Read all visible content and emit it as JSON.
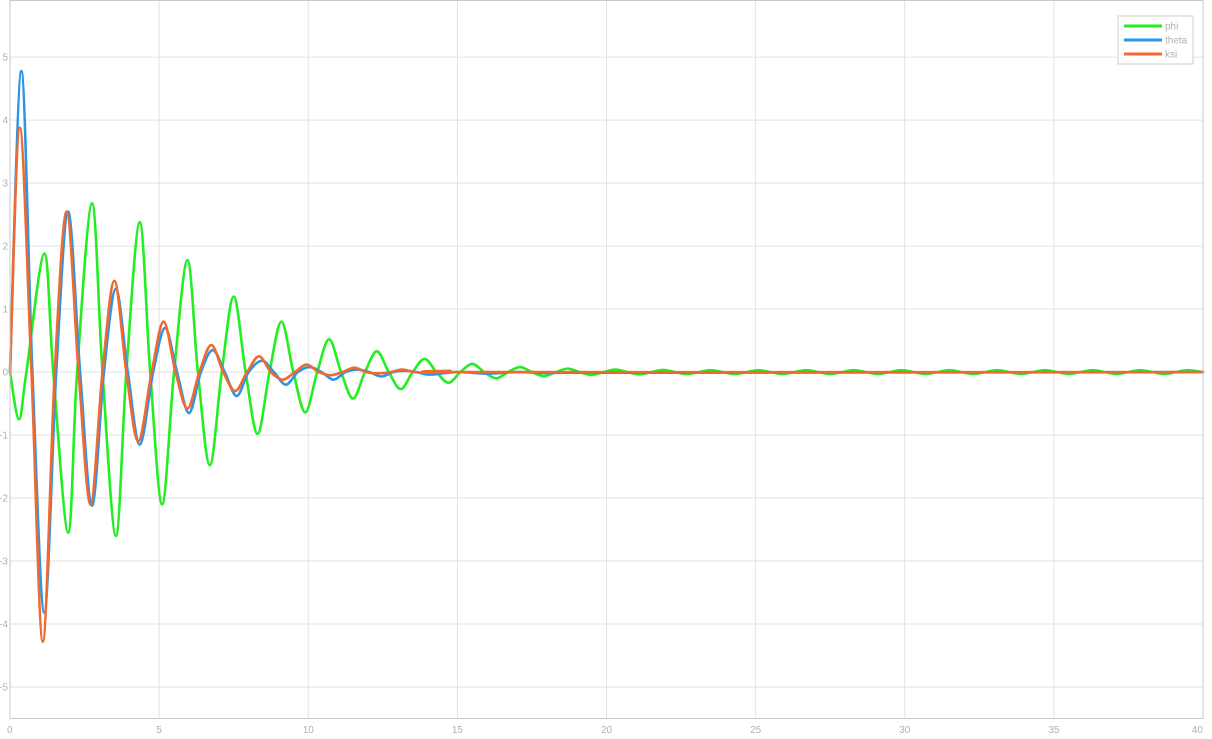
{
  "chart_data": {
    "type": "line",
    "title": "",
    "xlabel": "",
    "ylabel": "",
    "xlim": [
      0,
      40
    ],
    "ylim": [
      -5.5,
      5.9
    ],
    "grid": true,
    "legend_position": "top-right",
    "x_ticks": [
      0,
      5,
      10,
      15,
      20,
      25,
      30,
      35,
      40
    ],
    "x_tick_labels": [
      "0",
      "5",
      "10",
      "15",
      "20",
      "25",
      "30",
      "35",
      "40"
    ],
    "y_ticks": [
      -5,
      -4,
      -3,
      -2,
      -1,
      0,
      1,
      2,
      3,
      4,
      5
    ],
    "y_tick_labels": [
      "-5",
      "-4",
      "-3",
      "-2",
      "-1",
      "0",
      "1",
      "2",
      "3",
      "4",
      "5"
    ],
    "series": [
      {
        "name": "phi",
        "color": "#22ee22",
        "points": [
          [
            0,
            0
          ],
          [
            0.3,
            -0.75
          ],
          [
            0.55,
            0
          ],
          [
            1.15,
            1.88
          ],
          [
            1.45,
            0
          ],
          [
            1.95,
            -2.55
          ],
          [
            2.25,
            0
          ],
          [
            2.75,
            2.68
          ],
          [
            3.1,
            0
          ],
          [
            3.55,
            -2.6
          ],
          [
            3.9,
            0
          ],
          [
            4.35,
            2.38
          ],
          [
            4.7,
            0
          ],
          [
            5.1,
            -2.1
          ],
          [
            5.5,
            0
          ],
          [
            5.95,
            1.78
          ],
          [
            6.3,
            0
          ],
          [
            6.7,
            -1.48
          ],
          [
            7.1,
            0
          ],
          [
            7.5,
            1.2
          ],
          [
            7.9,
            0
          ],
          [
            8.3,
            -0.98
          ],
          [
            8.7,
            0
          ],
          [
            9.1,
            0.8
          ],
          [
            9.5,
            0
          ],
          [
            9.9,
            -0.64
          ],
          [
            10.3,
            0
          ],
          [
            10.7,
            0.52
          ],
          [
            11.1,
            0
          ],
          [
            11.5,
            -0.42
          ],
          [
            11.9,
            0
          ],
          [
            12.3,
            0.33
          ],
          [
            12.7,
            0
          ],
          [
            13.1,
            -0.27
          ],
          [
            13.5,
            0
          ],
          [
            13.9,
            0.21
          ],
          [
            14.3,
            0
          ],
          [
            14.7,
            -0.17
          ],
          [
            15.1,
            0
          ],
          [
            15.5,
            0.13
          ],
          [
            15.9,
            0
          ],
          [
            16.3,
            -0.1
          ],
          [
            16.7,
            0
          ],
          [
            17.1,
            0.08
          ],
          [
            17.5,
            0
          ],
          [
            17.9,
            -0.065
          ],
          [
            18.3,
            0
          ],
          [
            18.7,
            0.055
          ],
          [
            19.1,
            0
          ],
          [
            19.5,
            -0.045
          ],
          [
            19.9,
            0
          ],
          [
            20.3,
            0.04
          ],
          [
            20.7,
            0
          ],
          [
            21.1,
            -0.035
          ],
          [
            21.5,
            0
          ],
          [
            21.9,
            0.035
          ],
          [
            22.3,
            0
          ],
          [
            22.7,
            -0.03
          ],
          [
            23.1,
            0
          ],
          [
            23.5,
            0.03
          ],
          [
            23.9,
            0
          ],
          [
            24.3,
            -0.03
          ],
          [
            24.7,
            0
          ],
          [
            25.1,
            0.03
          ],
          [
            25.5,
            0
          ],
          [
            25.9,
            -0.03
          ],
          [
            26.3,
            0
          ],
          [
            26.7,
            0.03
          ],
          [
            27.1,
            0
          ],
          [
            27.5,
            -0.03
          ],
          [
            27.9,
            0
          ],
          [
            28.3,
            0.03
          ],
          [
            28.7,
            0
          ],
          [
            29.1,
            -0.03
          ],
          [
            29.5,
            0
          ],
          [
            29.9,
            0.03
          ],
          [
            30.3,
            0
          ],
          [
            30.7,
            -0.03
          ],
          [
            31.1,
            0
          ],
          [
            31.5,
            0.03
          ],
          [
            31.9,
            0
          ],
          [
            32.3,
            -0.03
          ],
          [
            32.7,
            0
          ],
          [
            33.1,
            0.03
          ],
          [
            33.5,
            0
          ],
          [
            33.9,
            -0.03
          ],
          [
            34.3,
            0
          ],
          [
            34.7,
            0.03
          ],
          [
            35.1,
            0
          ],
          [
            35.5,
            -0.03
          ],
          [
            35.9,
            0
          ],
          [
            36.3,
            0.03
          ],
          [
            36.7,
            0
          ],
          [
            37.1,
            -0.03
          ],
          [
            37.5,
            0
          ],
          [
            37.9,
            0.03
          ],
          [
            38.3,
            0
          ],
          [
            38.7,
            -0.03
          ],
          [
            39.1,
            0
          ],
          [
            39.5,
            0.03
          ],
          [
            40,
            0
          ]
        ]
      },
      {
        "name": "theta",
        "color": "#2b95e8",
        "points": [
          [
            0,
            0
          ],
          [
            0.38,
            4.78
          ],
          [
            0.75,
            0
          ],
          [
            1.15,
            -3.82
          ],
          [
            1.55,
            0
          ],
          [
            1.95,
            2.55
          ],
          [
            2.35,
            0
          ],
          [
            2.75,
            -2.12
          ],
          [
            3.15,
            0
          ],
          [
            3.55,
            1.32
          ],
          [
            3.95,
            0
          ],
          [
            4.35,
            -1.15
          ],
          [
            4.8,
            0
          ],
          [
            5.2,
            0.7
          ],
          [
            5.6,
            0
          ],
          [
            6.0,
            -0.65
          ],
          [
            6.4,
            0
          ],
          [
            6.8,
            0.35
          ],
          [
            7.2,
            0
          ],
          [
            7.6,
            -0.38
          ],
          [
            8.0,
            0
          ],
          [
            8.45,
            0.18
          ],
          [
            8.85,
            0
          ],
          [
            9.25,
            -0.2
          ],
          [
            9.65,
            0
          ],
          [
            10.05,
            0.08
          ],
          [
            10.45,
            0
          ],
          [
            10.85,
            -0.12
          ],
          [
            11.25,
            0
          ],
          [
            11.65,
            0.04
          ],
          [
            12.05,
            0
          ],
          [
            12.45,
            -0.07
          ],
          [
            12.85,
            0
          ],
          [
            13.25,
            0.02
          ],
          [
            13.65,
            0
          ],
          [
            14.05,
            -0.04
          ],
          [
            15,
            0
          ],
          [
            16,
            -0.025
          ],
          [
            17,
            0
          ],
          [
            18,
            -0.015
          ],
          [
            19,
            0
          ],
          [
            20,
            -0.01
          ],
          [
            40,
            0
          ]
        ]
      },
      {
        "name": "ksi",
        "color": "#f06a30",
        "points": [
          [
            0,
            0
          ],
          [
            0.33,
            3.88
          ],
          [
            0.72,
            0
          ],
          [
            1.1,
            -4.28
          ],
          [
            1.5,
            0
          ],
          [
            1.9,
            2.55
          ],
          [
            2.3,
            0
          ],
          [
            2.7,
            -2.1
          ],
          [
            3.1,
            0
          ],
          [
            3.5,
            1.45
          ],
          [
            3.9,
            0
          ],
          [
            4.3,
            -1.1
          ],
          [
            4.75,
            0
          ],
          [
            5.15,
            0.8
          ],
          [
            5.55,
            0
          ],
          [
            5.95,
            -0.58
          ],
          [
            6.35,
            0
          ],
          [
            6.75,
            0.43
          ],
          [
            7.15,
            0
          ],
          [
            7.55,
            -0.3
          ],
          [
            7.95,
            0
          ],
          [
            8.35,
            0.25
          ],
          [
            8.75,
            0
          ],
          [
            9.15,
            -0.12
          ],
          [
            9.55,
            0
          ],
          [
            9.95,
            0.12
          ],
          [
            10.35,
            0
          ],
          [
            10.75,
            -0.05
          ],
          [
            11.15,
            0
          ],
          [
            11.55,
            0.07
          ],
          [
            11.95,
            0
          ],
          [
            12.35,
            -0.02
          ],
          [
            12.75,
            0
          ],
          [
            13.15,
            0.04
          ],
          [
            13.55,
            0
          ],
          [
            13.95,
            -0.01
          ],
          [
            14.35,
            0
          ],
          [
            14.75,
            0.02
          ],
          [
            16,
            0
          ],
          [
            40,
            0
          ]
        ]
      }
    ]
  }
}
